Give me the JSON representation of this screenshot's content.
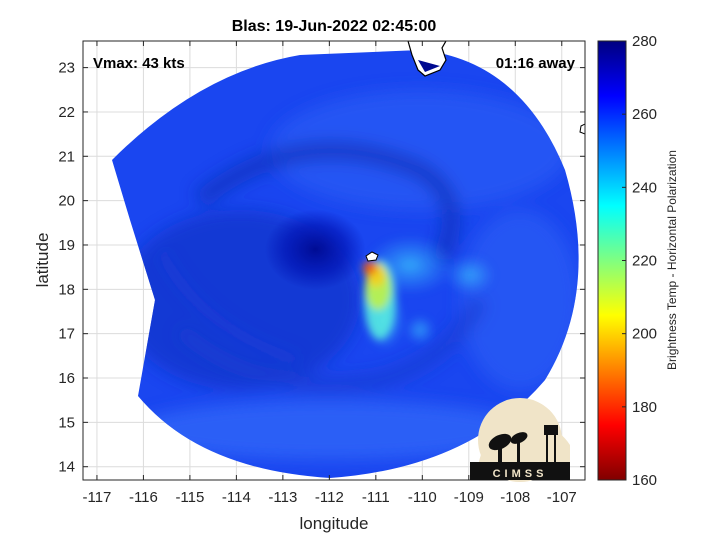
{
  "chart_data": {
    "type": "heatmap",
    "title": "Blas: 19-Jun-2022 02:45:00",
    "xlabel": "longitude",
    "ylabel": "latitude",
    "xlim": [
      -117.3,
      -106.5
    ],
    "ylim": [
      13.7,
      23.6
    ],
    "x_ticks": [
      -117,
      -116,
      -115,
      -114,
      -113,
      -112,
      -111,
      -110,
      -109,
      -108,
      -107
    ],
    "y_ticks": [
      14,
      15,
      16,
      17,
      18,
      19,
      20,
      21,
      22,
      23
    ],
    "grid": true,
    "annotations": {
      "vmax": "Vmax: 43 kts",
      "away": "01:16 away"
    },
    "colorbar": {
      "label": "Brightness Temp - Horizontal Polarization",
      "min": 160,
      "max": 280,
      "ticks": [
        160,
        180,
        200,
        220,
        240,
        260,
        280
      ],
      "colormap": "jet"
    },
    "storm_center": {
      "lon": -112.3,
      "lat": 18.9
    },
    "warm_core": [
      {
        "lon": -111.1,
        "lat": 18.5,
        "value": 190
      },
      {
        "lon": -110.9,
        "lat": 18.0,
        "value": 205
      },
      {
        "lon": -110.8,
        "lat": 17.3,
        "value": 235
      }
    ],
    "logo": "CIMSS",
    "colors": {
      "background_field": "#1a46f0",
      "coldest": "#000080",
      "grid": "#dcdcdc"
    }
  }
}
